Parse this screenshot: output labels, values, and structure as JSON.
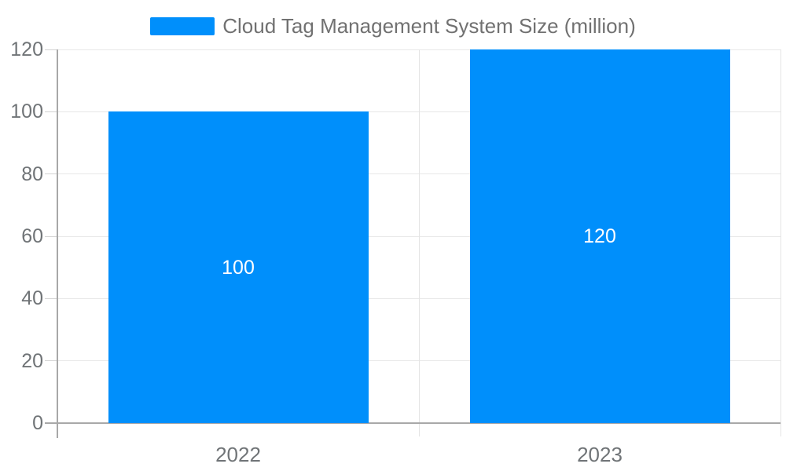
{
  "legend": {
    "label": "Cloud Tag Management System Size (million)"
  },
  "colors": {
    "bar": "#008FFB",
    "grid": "#e7e7e7",
    "vertical_grid": "#e4e4e4",
    "axis_line": "#a8a8a8",
    "tick": "#d2d2d2",
    "axis_label_text": "#707477",
    "legend_text": "#717171",
    "data_label_text": "#ffffff",
    "background": "#ffffff"
  },
  "chart_data": {
    "type": "bar",
    "title": "Cloud Tag Management System Size (million)",
    "categories": [
      "2022",
      "2023"
    ],
    "series": [
      {
        "name": "Cloud Tag Management System Size (million)",
        "values": [
          100,
          120
        ]
      }
    ],
    "data_labels": [
      "100",
      "120"
    ],
    "xlabel": "",
    "ylabel": "",
    "ylim": [
      0,
      120
    ],
    "ytick_step": 20,
    "yticks": [
      0,
      20,
      40,
      60,
      80,
      100,
      120
    ],
    "ytick_labels": [
      "0",
      "20",
      "40",
      "60",
      "80",
      "100",
      "120"
    ],
    "grid": true,
    "legend_position": "top-center"
  }
}
